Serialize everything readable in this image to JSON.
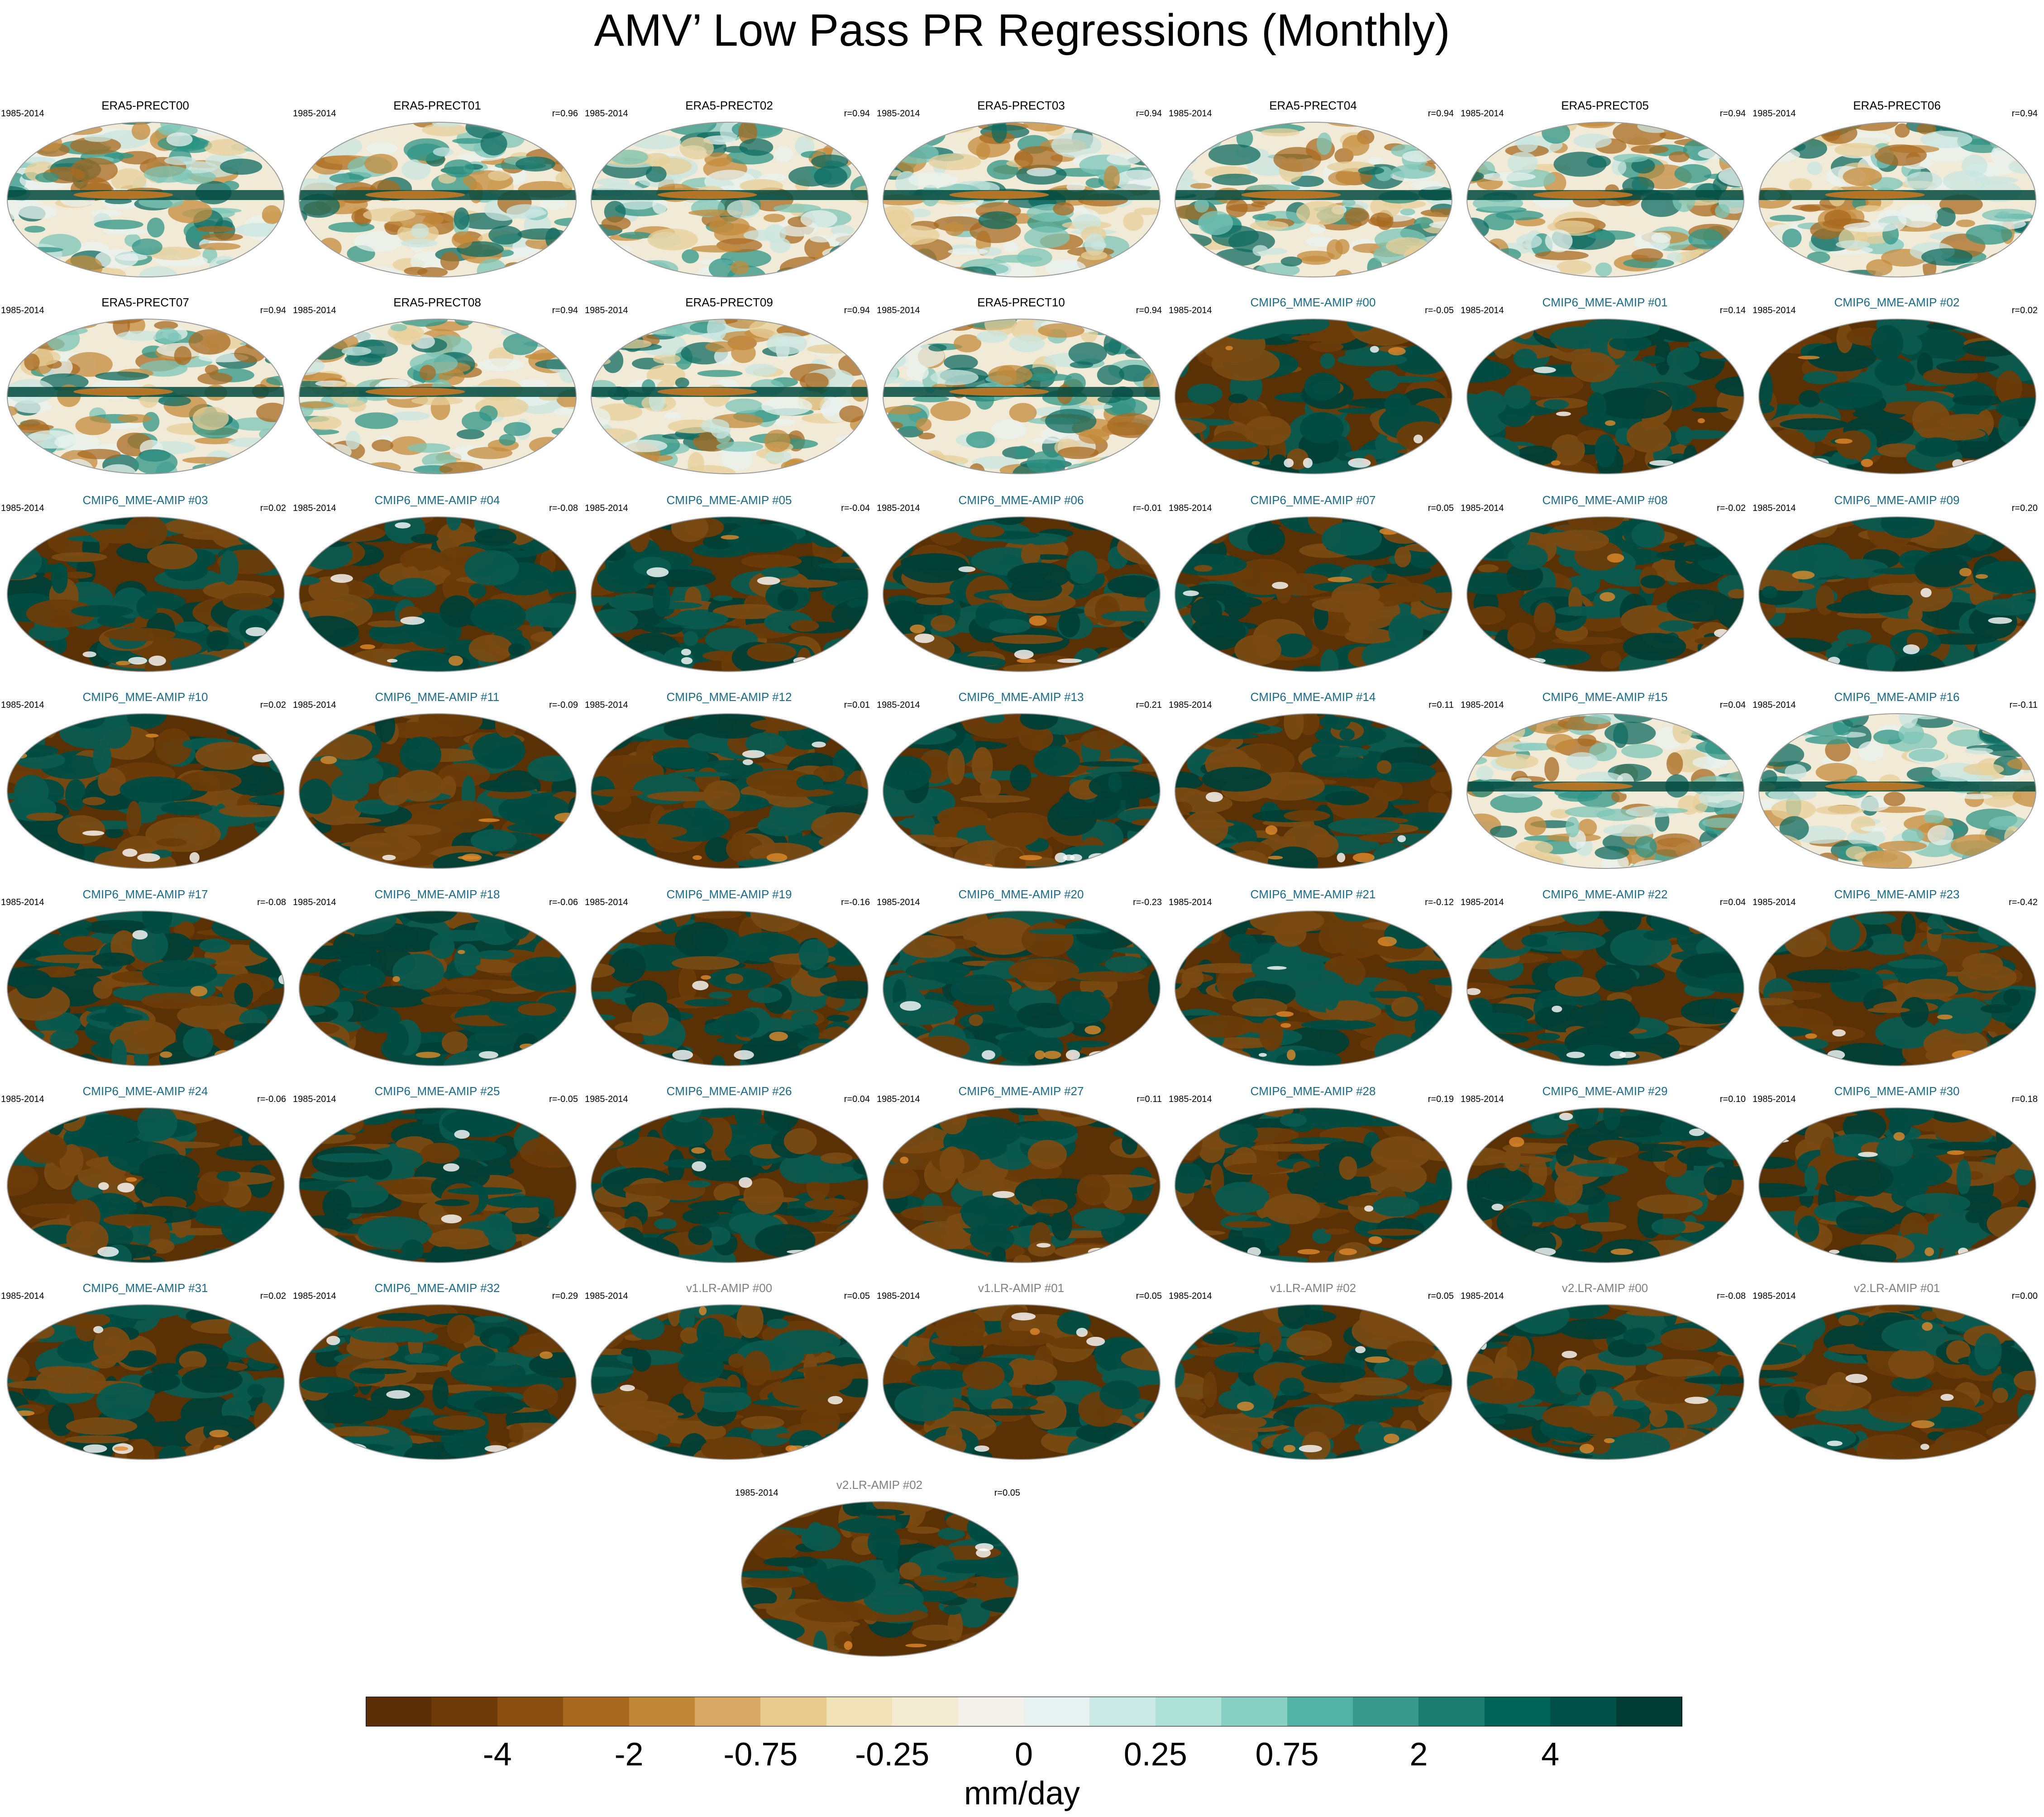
{
  "title": "AMV’ Low Pass PR Regressions (Monthly)",
  "chart_data": {
    "type": "heatmap",
    "title": "AMV’ Low Pass PR Regressions (Monthly)",
    "period": "1985-2014",
    "panels": [
      {
        "name": "ERA5-PRECT00",
        "group": "obs",
        "r": ""
      },
      {
        "name": "ERA5-PRECT01",
        "group": "obs",
        "r": "r=0.96"
      },
      {
        "name": "ERA5-PRECT02",
        "group": "obs",
        "r": "r=0.94"
      },
      {
        "name": "ERA5-PRECT03",
        "group": "obs",
        "r": "r=0.94"
      },
      {
        "name": "ERA5-PRECT04",
        "group": "obs",
        "r": "r=0.94"
      },
      {
        "name": "ERA5-PRECT05",
        "group": "obs",
        "r": "r=0.94"
      },
      {
        "name": "ERA5-PRECT06",
        "group": "obs",
        "r": "r=0.94"
      },
      {
        "name": "ERA5-PRECT07",
        "group": "obs",
        "r": "r=0.94"
      },
      {
        "name": "ERA5-PRECT08",
        "group": "obs",
        "r": "r=0.94"
      },
      {
        "name": "ERA5-PRECT09",
        "group": "obs",
        "r": "r=0.94"
      },
      {
        "name": "ERA5-PRECT10",
        "group": "obs",
        "r": "r=0.94"
      },
      {
        "name": "CMIP6_MME-AMIP  #00",
        "group": "cmip",
        "r": "r=-0.05"
      },
      {
        "name": "CMIP6_MME-AMIP  #01",
        "group": "cmip",
        "r": "r=0.14"
      },
      {
        "name": "CMIP6_MME-AMIP  #02",
        "group": "cmip",
        "r": "r=0.02"
      },
      {
        "name": "CMIP6_MME-AMIP  #03",
        "group": "cmip",
        "r": "r=0.02"
      },
      {
        "name": "CMIP6_MME-AMIP  #04",
        "group": "cmip",
        "r": "r=-0.08"
      },
      {
        "name": "CMIP6_MME-AMIP  #05",
        "group": "cmip",
        "r": "r=-0.04"
      },
      {
        "name": "CMIP6_MME-AMIP  #06",
        "group": "cmip",
        "r": "r=-0.01"
      },
      {
        "name": "CMIP6_MME-AMIP  #07",
        "group": "cmip",
        "r": "r=0.05"
      },
      {
        "name": "CMIP6_MME-AMIP  #08",
        "group": "cmip",
        "r": "r=-0.02"
      },
      {
        "name": "CMIP6_MME-AMIP  #09",
        "group": "cmip",
        "r": "r=0.20"
      },
      {
        "name": "CMIP6_MME-AMIP  #10",
        "group": "cmip",
        "r": "r=0.02"
      },
      {
        "name": "CMIP6_MME-AMIP  #11",
        "group": "cmip",
        "r": "r=-0.09"
      },
      {
        "name": "CMIP6_MME-AMIP  #12",
        "group": "cmip",
        "r": "r=0.01"
      },
      {
        "name": "CMIP6_MME-AMIP  #13",
        "group": "cmip",
        "r": "r=0.21"
      },
      {
        "name": "CMIP6_MME-AMIP  #14",
        "group": "cmip",
        "r": "r=0.11"
      },
      {
        "name": "CMIP6_MME-AMIP  #15",
        "group": "cmip",
        "r": "r=0.04"
      },
      {
        "name": "CMIP6_MME-AMIP  #16",
        "group": "cmip",
        "r": "r=-0.11"
      },
      {
        "name": "CMIP6_MME-AMIP  #17",
        "group": "cmip",
        "r": "r=-0.08"
      },
      {
        "name": "CMIP6_MME-AMIP  #18",
        "group": "cmip",
        "r": "r=-0.06"
      },
      {
        "name": "CMIP6_MME-AMIP  #19",
        "group": "cmip",
        "r": "r=-0.16"
      },
      {
        "name": "CMIP6_MME-AMIP  #20",
        "group": "cmip",
        "r": "r=-0.23"
      },
      {
        "name": "CMIP6_MME-AMIP  #21",
        "group": "cmip",
        "r": "r=-0.12"
      },
      {
        "name": "CMIP6_MME-AMIP  #22",
        "group": "cmip",
        "r": "r=0.04"
      },
      {
        "name": "CMIP6_MME-AMIP  #23",
        "group": "cmip",
        "r": "r=-0.42"
      },
      {
        "name": "CMIP6_MME-AMIP  #24",
        "group": "cmip",
        "r": "r=-0.06"
      },
      {
        "name": "CMIP6_MME-AMIP  #25",
        "group": "cmip",
        "r": "r=-0.05"
      },
      {
        "name": "CMIP6_MME-AMIP  #26",
        "group": "cmip",
        "r": "r=0.04"
      },
      {
        "name": "CMIP6_MME-AMIP  #27",
        "group": "cmip",
        "r": "r=0.11"
      },
      {
        "name": "CMIP6_MME-AMIP  #28",
        "group": "cmip",
        "r": "r=0.19"
      },
      {
        "name": "CMIP6_MME-AMIP  #29",
        "group": "cmip",
        "r": "r=0.10"
      },
      {
        "name": "CMIP6_MME-AMIP  #30",
        "group": "cmip",
        "r": "r=0.18"
      },
      {
        "name": "CMIP6_MME-AMIP  #31",
        "group": "cmip",
        "r": "r=0.02"
      },
      {
        "name": "CMIP6_MME-AMIP  #32",
        "group": "cmip",
        "r": "r=0.29"
      },
      {
        "name": "v1.LR-AMIP  #00",
        "group": "e3sm",
        "r": "r=0.05"
      },
      {
        "name": "v1.LR-AMIP  #01",
        "group": "e3sm",
        "r": "r=0.05"
      },
      {
        "name": "v1.LR-AMIP  #02",
        "group": "e3sm",
        "r": "r=0.05"
      },
      {
        "name": "v2.LR-AMIP  #00",
        "group": "e3sm",
        "r": "r=-0.08"
      },
      {
        "name": "v2.LR-AMIP  #01",
        "group": "e3sm",
        "r": "r=0.00"
      },
      {
        "name": "v2.LR-AMIP  #02",
        "group": "e3sm",
        "r": "r=0.05"
      }
    ],
    "group_title_colors": {
      "obs": "#000000",
      "cmip": "#1a6b8a",
      "e3sm": "#808080"
    },
    "colorbar": {
      "units": "mm/day",
      "tick_labels": [
        "-4",
        "-2",
        "-0.75",
        "-0.25",
        "0",
        "0.25",
        "0.75",
        "2",
        "4"
      ],
      "colors": [
        "#5a2f07",
        "#6e3a08",
        "#8a4e10",
        "#a8691f",
        "#c08737",
        "#d6a864",
        "#e8c98e",
        "#f0e1b6",
        "#f4ebd3",
        "#f4f0ea",
        "#e6f1f0",
        "#cbe9e4",
        "#aee1d8",
        "#87d0c2",
        "#52b2a3",
        "#389889",
        "#1b7c70",
        "#006357",
        "#005047",
        "#003c33"
      ]
    }
  }
}
